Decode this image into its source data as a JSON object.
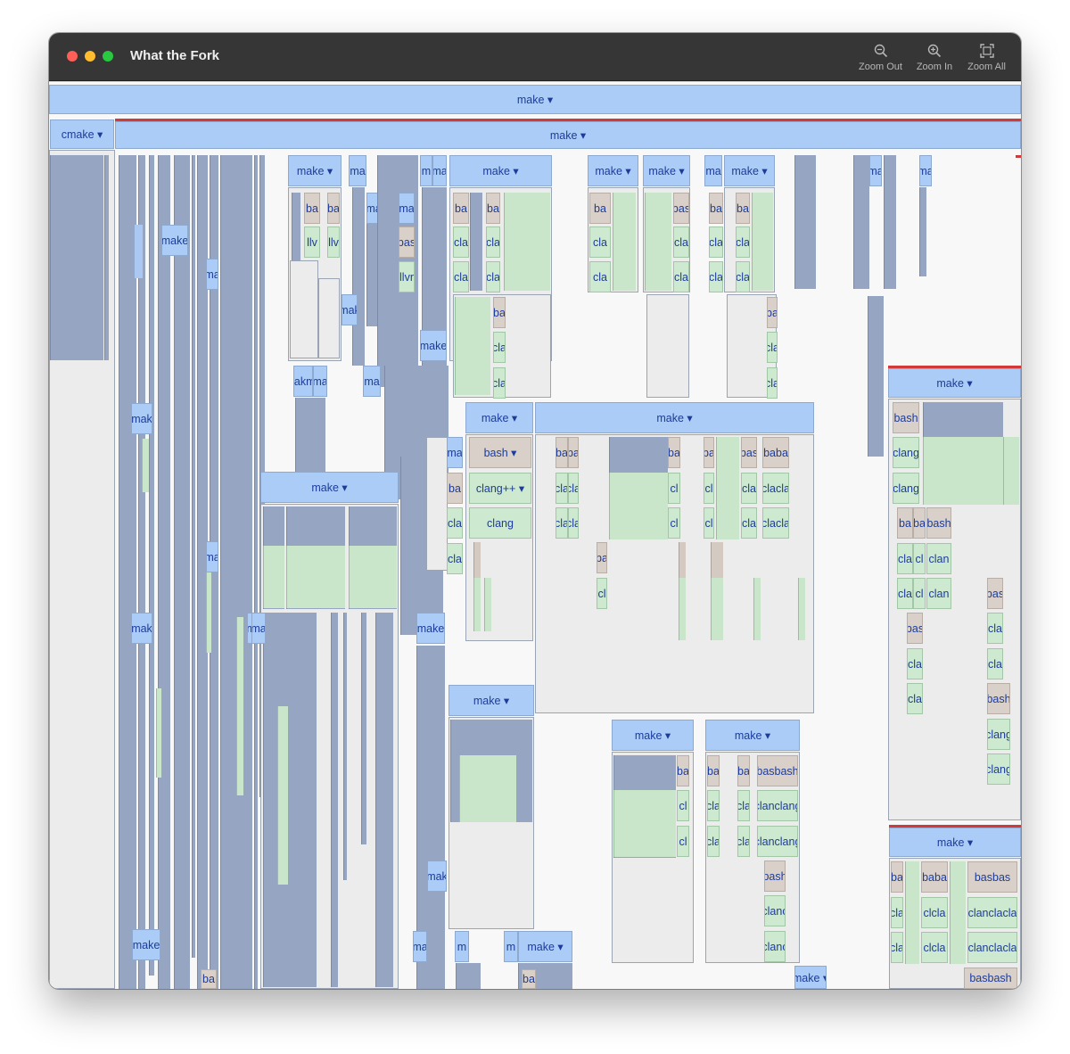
{
  "window": {
    "title": "What the Fork",
    "toolbar": {
      "zoom_out_label": "Zoom Out",
      "zoom_in_label": "Zoom In",
      "zoom_all_label": "Zoom All"
    }
  },
  "colors": {
    "make": "#aaccf7",
    "bash": "#d9d0c9",
    "clang": "#cde9cf",
    "dense": "#96a6c2",
    "alert": "#d13a3a",
    "text": "#1d3c9a"
  },
  "process_labels": {
    "make_root": "make ▾",
    "cmake": "cmake ▾",
    "make_main": "make ▾",
    "make_a": "make ▾",
    "make_b": "make ▾",
    "make_c": "make ▾",
    "make_d": "make ▾",
    "make_e": "make ▾",
    "make_f": "make ▾",
    "make_g": "make ▾",
    "make_h": "make ▾",
    "make_i": "make ▾",
    "make_j": "make ▾",
    "make_k": "make ▾",
    "make_l": "make ▾",
    "make_m": "make ▾",
    "make_n": "make ▾",
    "bash_a": "bash ▾",
    "clangpp_a": "clang++ ▾",
    "clang_a": "clang",
    "frag": {
      "ba": "ba",
      "bas": "bas",
      "bash": "bash",
      "baba": "baba",
      "basbash": "basbash",
      "baa": "baba",
      "ma": "ma",
      "mak": "mak",
      "make": "make",
      "makma": "makma",
      "m": "m",
      "cla": "cla",
      "clang": "clang",
      "clanc": "clanc",
      "clanclang": "clanclang",
      "clcla": "clcla",
      "cl": "cl",
      "clan": "clan",
      "clanclacla": "clanclacla",
      "llv": "llv",
      "llvr": "llvr",
      "c": "c",
      "cla2": "clacla",
      "bashba": "basbash",
      "basbas": "basbas",
      "ma2": "ma"
    }
  }
}
